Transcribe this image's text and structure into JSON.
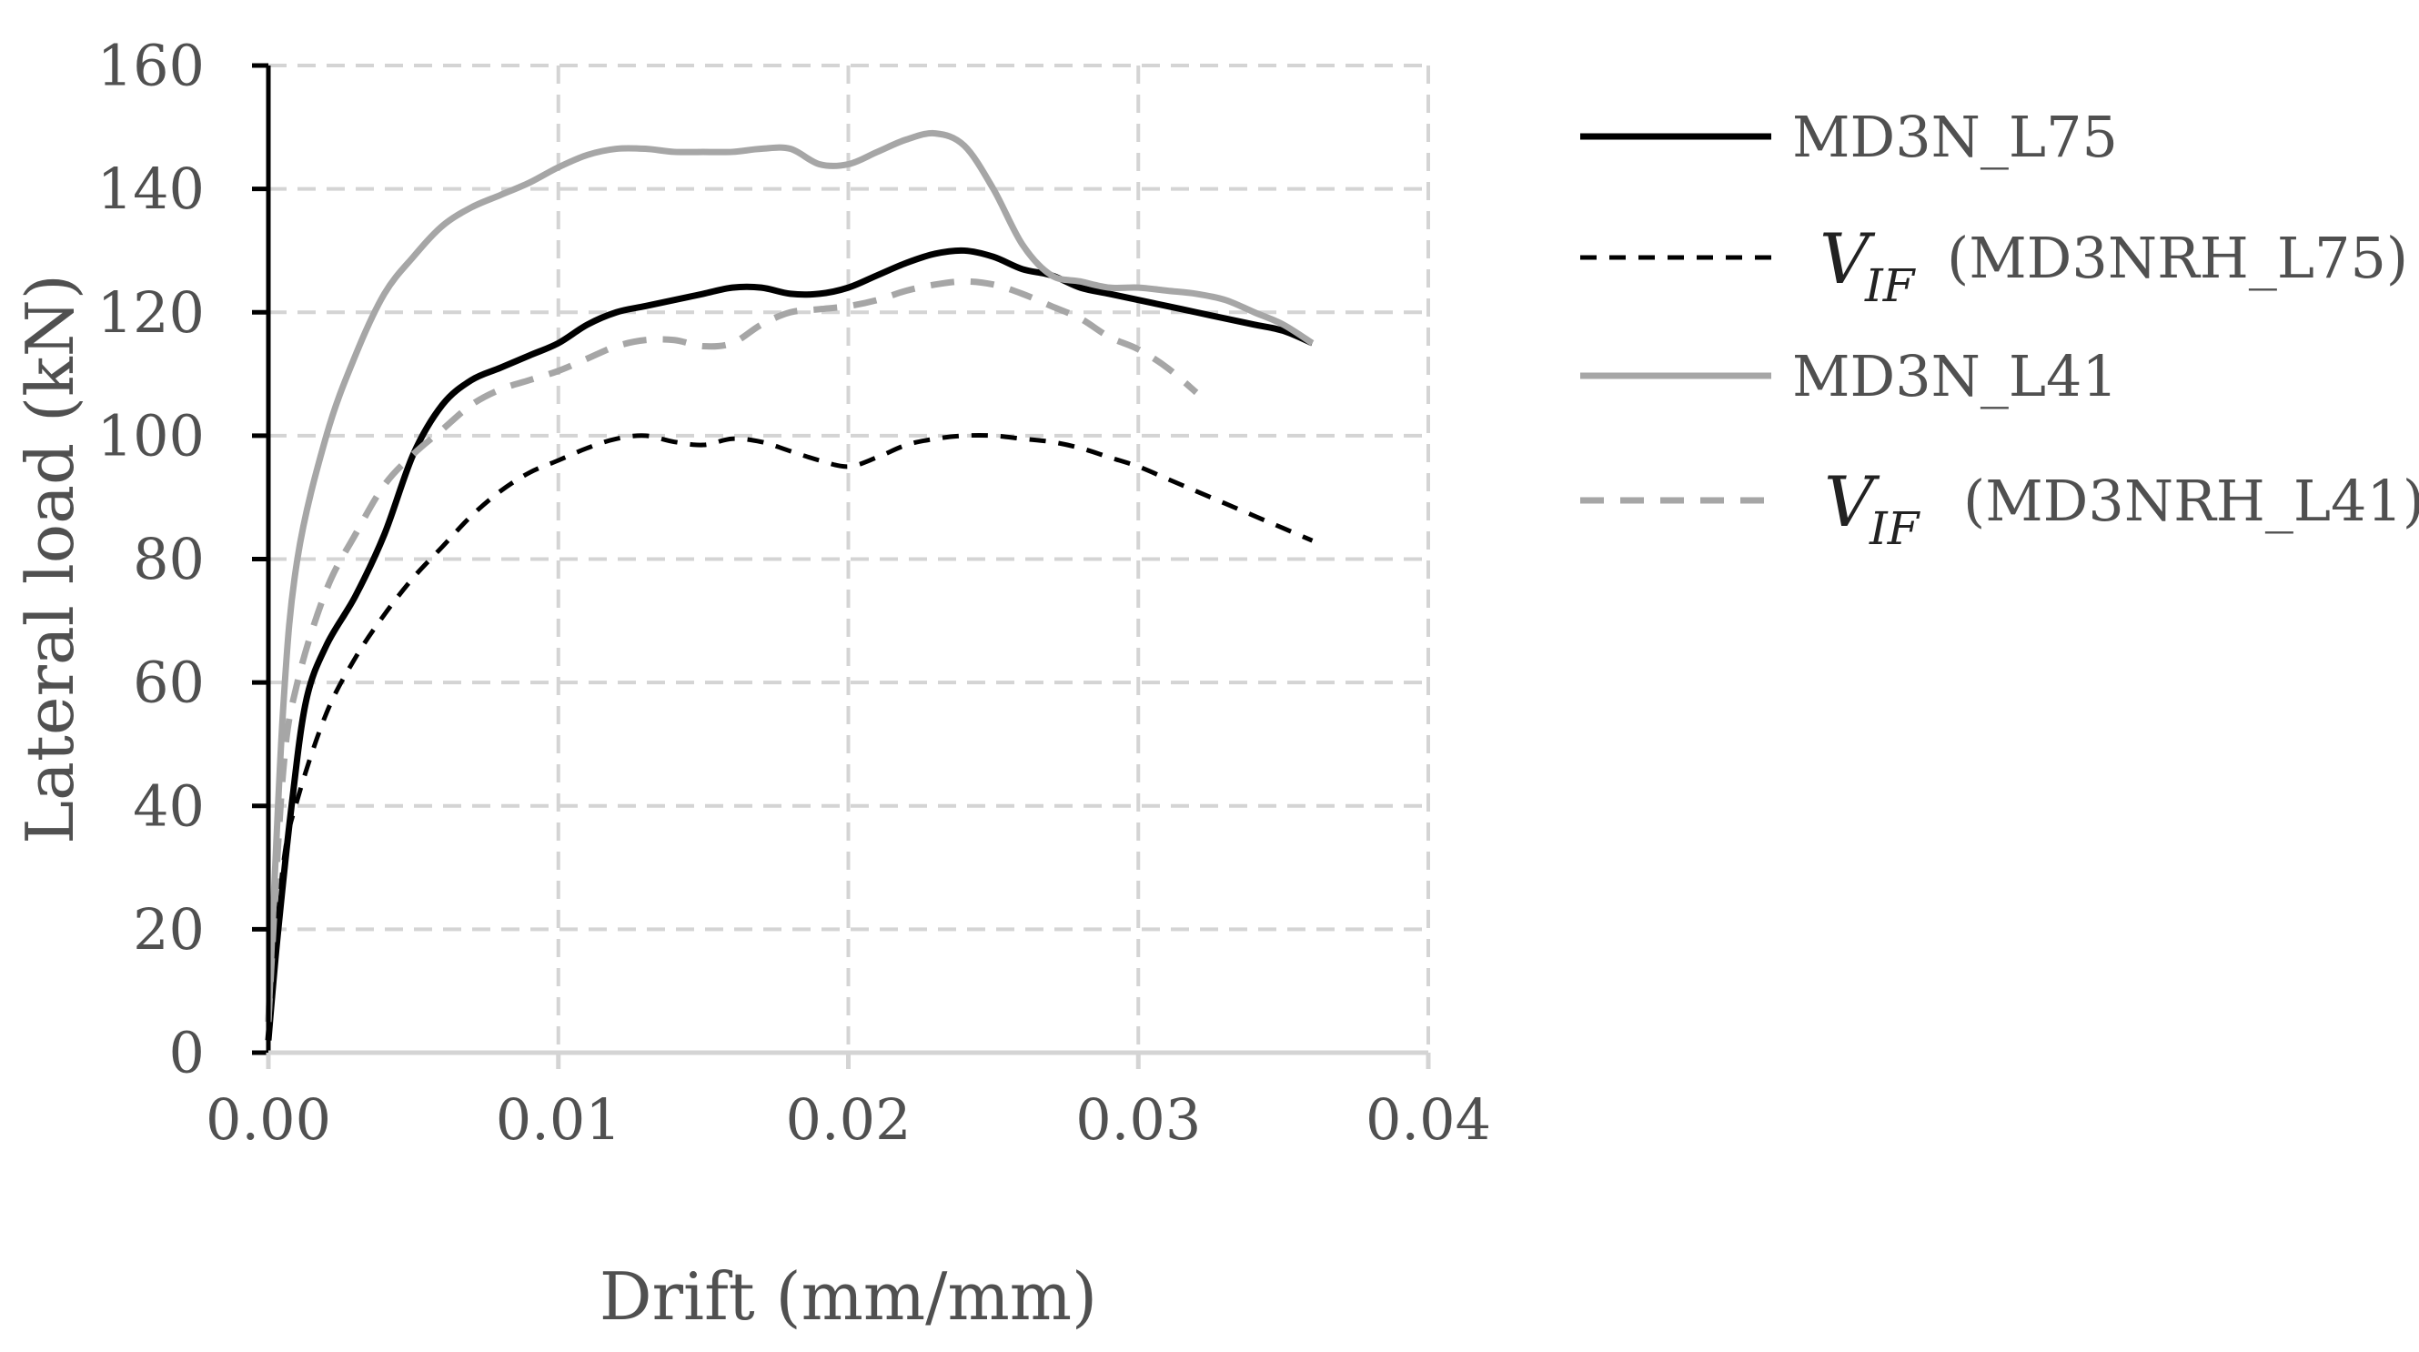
{
  "chart_data": {
    "type": "line",
    "title": "",
    "xlabel": "Drift (mm/mm)",
    "ylabel": "Lateral load (kN)",
    "xlim": [
      0,
      0.04
    ],
    "ylim": [
      0,
      160
    ],
    "grid": true,
    "legend_position": "right",
    "x_ticks": [
      "0.00",
      "0.01",
      "0.02",
      "0.03",
      "0.04"
    ],
    "y_ticks": [
      "0",
      "20",
      "40",
      "60",
      "80",
      "100",
      "120",
      "140",
      "160"
    ],
    "series": [
      {
        "name": "MD3N_L75",
        "color": "#000000",
        "style": "solid",
        "x": [
          0,
          0.0003,
          0.0008,
          0.0013,
          0.002,
          0.003,
          0.004,
          0.005,
          0.006,
          0.007,
          0.008,
          0.009,
          0.01,
          0.011,
          0.012,
          0.013,
          0.014,
          0.015,
          0.016,
          0.017,
          0.018,
          0.019,
          0.02,
          0.021,
          0.022,
          0.023,
          0.024,
          0.025,
          0.026,
          0.027,
          0.028,
          0.029,
          0.03,
          0.031,
          0.032,
          0.033,
          0.034,
          0.035,
          0.036
        ],
        "y": [
          2,
          18,
          40,
          57,
          66,
          74,
          84,
          97,
          105,
          109,
          111,
          113,
          115,
          118,
          120,
          121,
          122,
          123,
          124,
          124,
          123,
          123,
          124,
          126,
          128,
          129.5,
          130,
          129,
          127,
          126,
          124,
          123,
          122,
          121,
          120,
          119,
          118,
          117,
          115
        ]
      },
      {
        "name": "VIF (MD3NRH_L75)",
        "legend_symbol": "V",
        "legend_subscript": "IF",
        "legend_text": "(MD3NRH_L75)",
        "color": "#000000",
        "style": "dashed",
        "x": [
          0,
          0.0005,
          0.001,
          0.002,
          0.003,
          0.004,
          0.005,
          0.006,
          0.007,
          0.008,
          0.009,
          0.01,
          0.011,
          0.012,
          0.013,
          0.014,
          0.015,
          0.016,
          0.017,
          0.018,
          0.019,
          0.02,
          0.021,
          0.022,
          0.023,
          0.024,
          0.025,
          0.026,
          0.027,
          0.028,
          0.029,
          0.03,
          0.031,
          0.032,
          0.033,
          0.034,
          0.035,
          0.036
        ],
        "y": [
          3,
          30,
          41,
          55,
          64,
          71,
          77,
          82,
          87,
          91,
          94,
          96,
          98,
          99.5,
          100,
          99,
          98.5,
          99.5,
          99,
          97.5,
          96,
          95,
          96.5,
          98.5,
          99.5,
          100,
          100,
          99.5,
          99,
          98,
          96.5,
          95,
          93,
          91,
          89,
          87,
          85,
          83
        ]
      },
      {
        "name": "MD3N_L41",
        "color": "#A6A6A6",
        "style": "solid",
        "x": [
          0,
          0.0005,
          0.001,
          0.002,
          0.003,
          0.004,
          0.005,
          0.006,
          0.007,
          0.008,
          0.009,
          0.01,
          0.011,
          0.012,
          0.013,
          0.014,
          0.015,
          0.016,
          0.017,
          0.018,
          0.019,
          0.02,
          0.021,
          0.022,
          0.023,
          0.024,
          0.025,
          0.026,
          0.027,
          0.028,
          0.029,
          0.03,
          0.031,
          0.032,
          0.033,
          0.034,
          0.035,
          0.036
        ],
        "y": [
          5,
          55,
          80,
          100,
          113,
          123,
          129,
          134,
          137,
          139,
          141,
          143.5,
          145.5,
          146.5,
          146.5,
          146,
          146,
          146,
          146.5,
          146.5,
          144,
          144,
          146,
          148,
          149,
          147,
          140,
          131,
          126,
          125,
          124,
          124,
          123.5,
          123,
          122,
          120,
          118,
          115
        ]
      },
      {
        "name": "VIF (MD3NRH_L41)",
        "legend_symbol": "V",
        "legend_subscript": "IF",
        "legend_text": "(MD3NRH_L41)",
        "color": "#A6A6A6",
        "style": "dashed",
        "x": [
          0,
          0.0005,
          0.001,
          0.002,
          0.003,
          0.004,
          0.005,
          0.006,
          0.007,
          0.008,
          0.009,
          0.01,
          0.011,
          0.012,
          0.013,
          0.014,
          0.015,
          0.016,
          0.017,
          0.018,
          0.019,
          0.02,
          0.021,
          0.022,
          0.023,
          0.024,
          0.025,
          0.026,
          0.027,
          0.028,
          0.029,
          0.03,
          0.031,
          0.032
        ],
        "y": [
          5,
          45,
          60,
          75,
          84,
          92,
          97,
          101,
          105,
          107.5,
          109,
          110.5,
          112.5,
          114.5,
          115.5,
          115.5,
          114.5,
          115,
          118,
          120,
          120.5,
          121,
          122,
          123.5,
          124.5,
          125,
          124.5,
          123,
          121,
          119,
          116,
          114,
          111,
          107
        ]
      }
    ]
  }
}
